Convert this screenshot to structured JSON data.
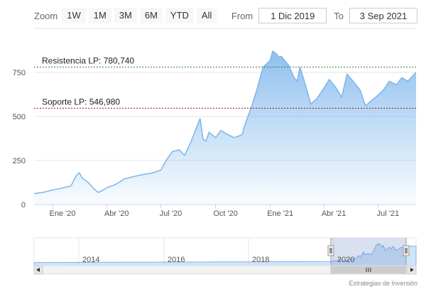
{
  "rangeSelector": {
    "zoom_label": "Zoom",
    "buttons": [
      "1W",
      "1M",
      "3M",
      "6M",
      "YTD",
      "All"
    ],
    "from_label": "From",
    "from_value": "1 Dic 2019",
    "to_label": "To",
    "to_value": "3 Sep 2021"
  },
  "chart_data": {
    "type": "area",
    "title": "",
    "xlabel": "",
    "ylabel": "",
    "x_tick_labels": [
      "Ene '20",
      "Abr '20",
      "Jul '20",
      "Oct '20",
      "Ene '21",
      "Abr '21",
      "Jul '21"
    ],
    "y_ticks": [
      0,
      250,
      500,
      750
    ],
    "ylim": [
      0,
      1000
    ],
    "xlim": [
      "2019-12-01",
      "2021-09-03"
    ],
    "grid": true,
    "plot_lines": [
      {
        "label": "Resistencia LP: 780,740",
        "value": 780.74,
        "color": "#2e7d32"
      },
      {
        "label": "Soporte LP: 546,980",
        "value": 546.98,
        "color": "#8b1a1a"
      }
    ],
    "series": [
      {
        "color": "#7cb5ec",
        "x": [
          "2019-12-01",
          "2019-12-15",
          "2020-01-01",
          "2020-01-15",
          "2020-02-01",
          "2020-02-10",
          "2020-02-15",
          "2020-02-20",
          "2020-03-01",
          "2020-03-10",
          "2020-03-18",
          "2020-03-25",
          "2020-04-01",
          "2020-04-15",
          "2020-05-01",
          "2020-05-15",
          "2020-06-01",
          "2020-06-15",
          "2020-07-01",
          "2020-07-10",
          "2020-07-20",
          "2020-08-01",
          "2020-08-10",
          "2020-08-20",
          "2020-09-01",
          "2020-09-05",
          "2020-09-10",
          "2020-09-15",
          "2020-09-20",
          "2020-10-01",
          "2020-10-10",
          "2020-10-20",
          "2020-11-01",
          "2020-11-10",
          "2020-11-15",
          "2020-11-20",
          "2020-12-01",
          "2020-12-10",
          "2020-12-15",
          "2020-12-20",
          "2021-01-01",
          "2021-01-05",
          "2021-01-10",
          "2021-01-15",
          "2021-01-20",
          "2021-02-01",
          "2021-02-10",
          "2021-02-15",
          "2021-02-20",
          "2021-03-01",
          "2021-03-10",
          "2021-03-20",
          "2021-04-01",
          "2021-04-10",
          "2021-04-20",
          "2021-05-01",
          "2021-05-10",
          "2021-05-20",
          "2021-06-01",
          "2021-06-10",
          "2021-06-20",
          "2021-07-01",
          "2021-07-10",
          "2021-07-20",
          "2021-08-01",
          "2021-08-10",
          "2021-08-20",
          "2021-09-03"
        ],
        "values": [
          62,
          68,
          82,
          92,
          105,
          165,
          180,
          150,
          125,
          90,
          68,
          80,
          95,
          112,
          145,
          158,
          170,
          178,
          195,
          250,
          300,
          310,
          280,
          350,
          455,
          490,
          370,
          360,
          410,
          380,
          420,
          400,
          380,
          390,
          400,
          460,
          560,
          660,
          720,
          780,
          820,
          870,
          860,
          840,
          840,
          790,
          720,
          700,
          780,
          680,
          570,
          600,
          660,
          710,
          670,
          610,
          740,
          700,
          650,
          560,
          590,
          620,
          650,
          700,
          680,
          720,
          700,
          750
        ]
      }
    ]
  },
  "navigator": {
    "year_labels": [
      "2014",
      "2016",
      "2018",
      "2020"
    ]
  },
  "credit": "Estrategias de Inversión"
}
